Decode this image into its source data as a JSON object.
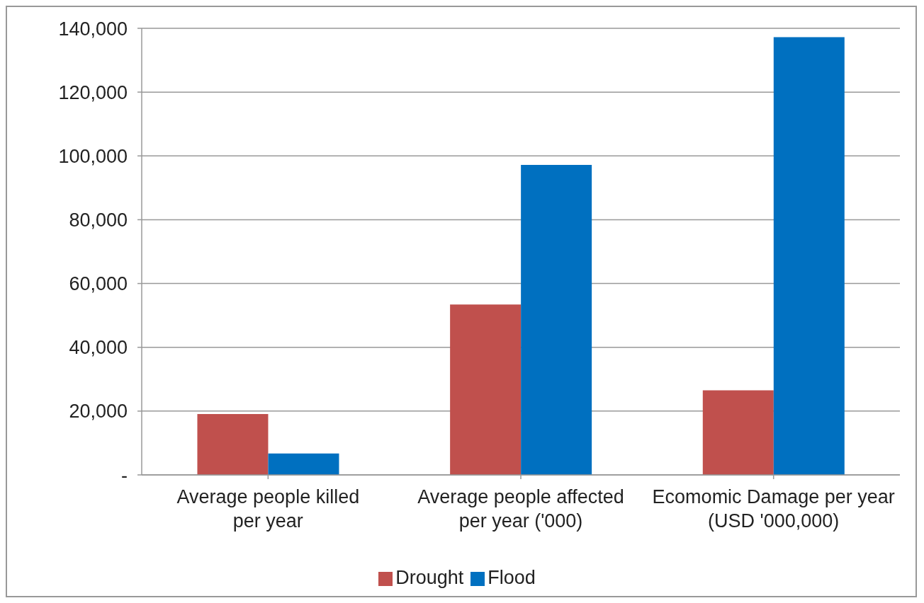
{
  "chart_data": {
    "type": "bar",
    "categories": [
      "Average people killed per year",
      "Average people affected per year ('000)",
      "Ecomomic Damage per year (USD '000,000)"
    ],
    "series": [
      {
        "name": "Drought",
        "color": "#c0504d",
        "values": [
          19100,
          53400,
          26500
        ]
      },
      {
        "name": "Flood",
        "color": "#0070c0",
        "values": [
          6700,
          97200,
          137200
        ]
      }
    ],
    "ylim": [
      0,
      140000
    ],
    "yticks": [
      {
        "value": 0,
        "label": "-"
      },
      {
        "value": 20000,
        "label": "20,000"
      },
      {
        "value": 40000,
        "label": "40,000"
      },
      {
        "value": 60000,
        "label": "60,000"
      },
      {
        "value": 80000,
        "label": "80,000"
      },
      {
        "value": 100000,
        "label": "100,000"
      },
      {
        "value": 120000,
        "label": "120,000"
      },
      {
        "value": 140000,
        "label": "140,000"
      }
    ],
    "grid": "y",
    "legend": "bottom"
  }
}
